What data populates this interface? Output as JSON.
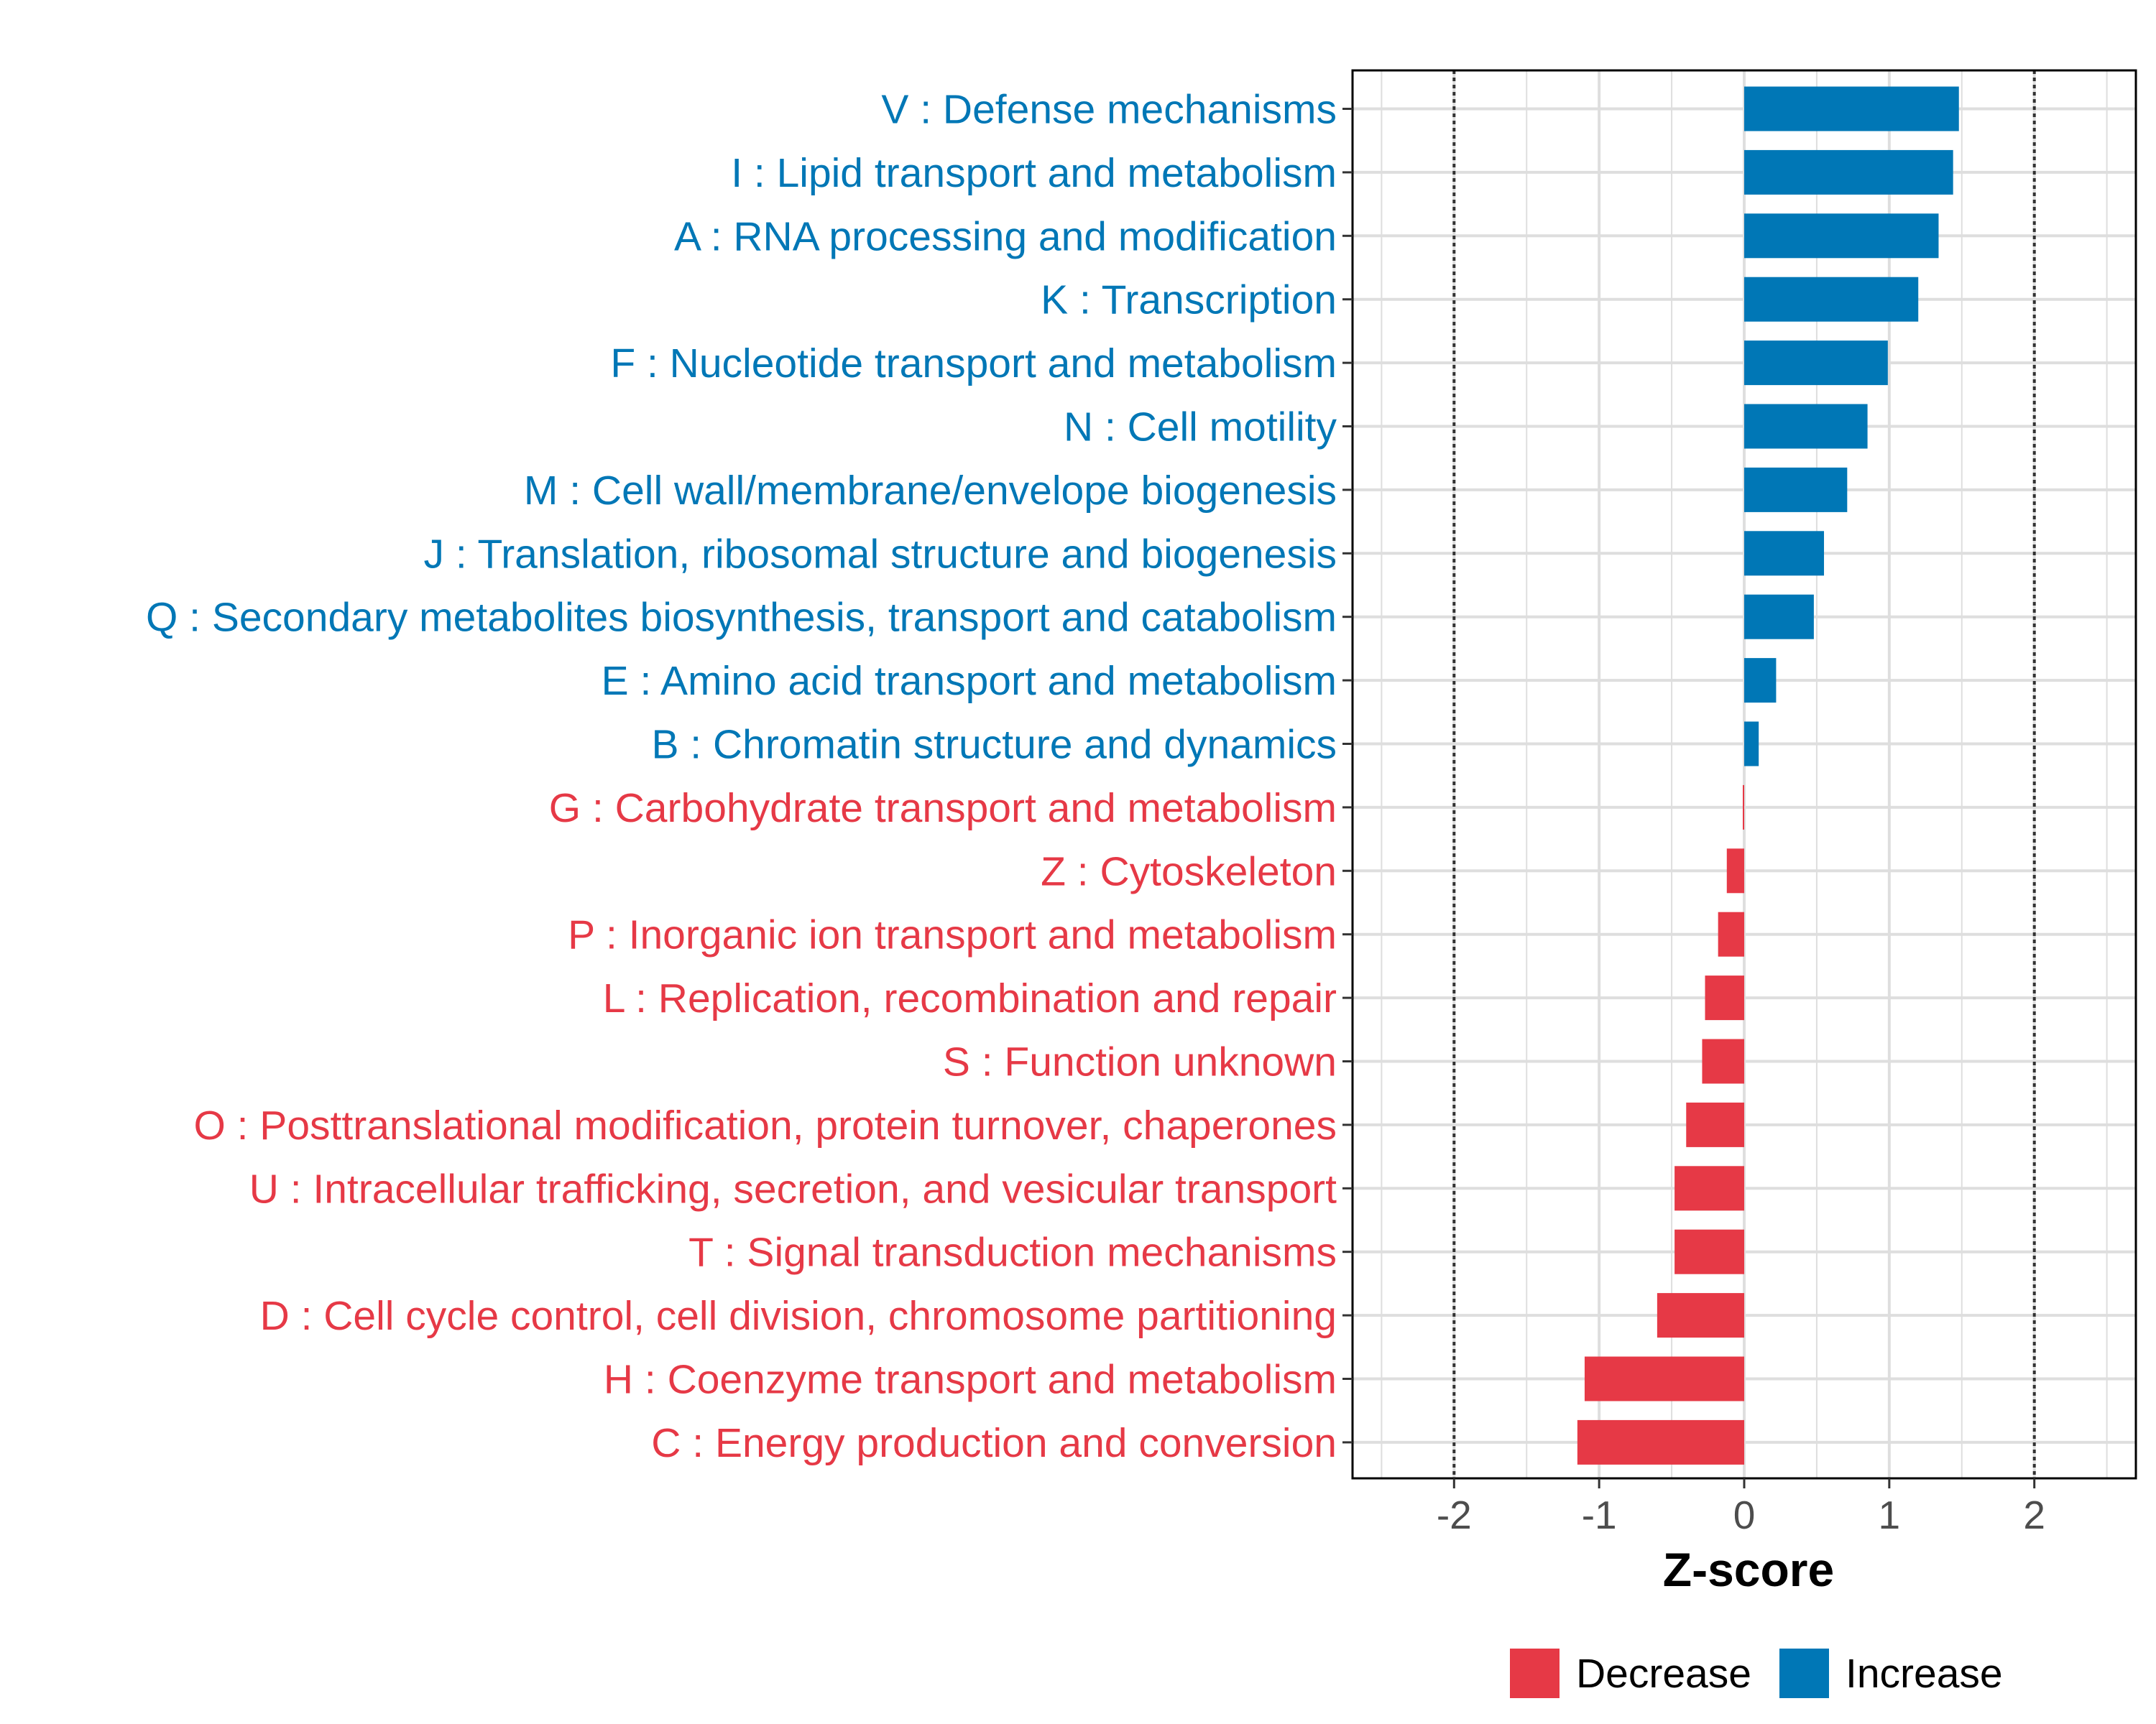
{
  "chart_data": {
    "type": "bar",
    "orientation": "horizontal",
    "xlabel": "Z-score",
    "ylabel": "",
    "title": "",
    "xlim": [
      -2.7,
      2.7
    ],
    "x_ticks": [
      -2,
      -1,
      0,
      1,
      2
    ],
    "x_tick_labels": [
      "-2",
      "-1",
      "0",
      "1",
      "2"
    ],
    "reference_lines": [
      -2,
      2
    ],
    "grid": true,
    "legend": {
      "position": "bottom",
      "entries": [
        {
          "name": "Decrease",
          "color": "#E63946"
        },
        {
          "name": "Increase",
          "color": "#0077B6"
        }
      ]
    },
    "categories": [
      "V : Defense mechanisms",
      "I : Lipid transport and metabolism",
      "A : RNA processing and modification",
      "K : Transcription",
      "F : Nucleotide transport and metabolism",
      "N : Cell motility",
      "M : Cell wall/membrane/envelope biogenesis",
      "J : Translation, ribosomal structure and biogenesis",
      "Q : Secondary metabolites biosynthesis, transport and catabolism",
      "E : Amino acid transport and metabolism",
      "B : Chromatin structure and dynamics",
      "G : Carbohydrate transport and metabolism",
      "Z : Cytoskeleton",
      "P : Inorganic ion transport and metabolism",
      "L : Replication, recombination and repair",
      "S : Function unknown",
      "O : Posttranslational modification, protein turnover, chaperones",
      "U : Intracellular trafficking, secretion, and vesicular transport",
      "T : Signal transduction mechanisms",
      "D : Cell cycle control, cell division, chromosome partitioning",
      "H : Coenzyme transport and metabolism",
      "C : Energy production and conversion"
    ],
    "values": [
      1.48,
      1.44,
      1.34,
      1.2,
      0.99,
      0.85,
      0.71,
      0.55,
      0.48,
      0.22,
      0.1,
      -0.01,
      -0.12,
      -0.18,
      -0.27,
      -0.29,
      -0.4,
      -0.48,
      -0.48,
      -0.6,
      -1.1,
      -1.15
    ],
    "groups": [
      "Increase",
      "Increase",
      "Increase",
      "Increase",
      "Increase",
      "Increase",
      "Increase",
      "Increase",
      "Increase",
      "Increase",
      "Increase",
      "Decrease",
      "Decrease",
      "Decrease",
      "Decrease",
      "Decrease",
      "Decrease",
      "Decrease",
      "Decrease",
      "Decrease",
      "Decrease",
      "Decrease"
    ]
  }
}
